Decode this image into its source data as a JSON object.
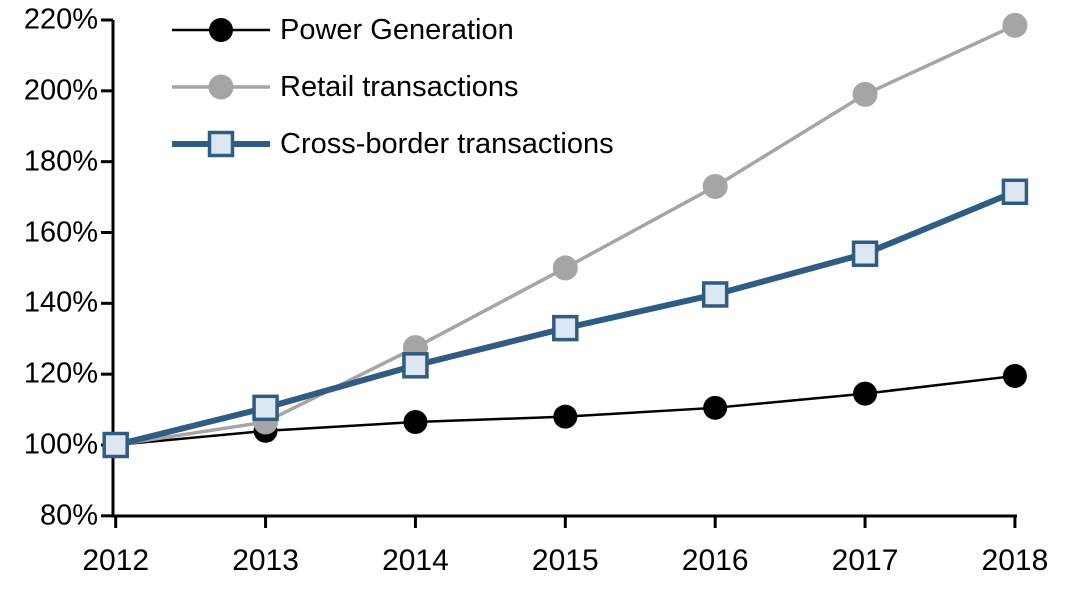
{
  "chart_data": {
    "type": "line",
    "title": "",
    "xlabel": "",
    "ylabel": "",
    "x": [
      "2012",
      "2013",
      "2014",
      "2015",
      "2016",
      "2017",
      "2018"
    ],
    "y_axis": {
      "min": 80,
      "max": 220,
      "step": 20,
      "suffix": "%",
      "tick_labels": [
        "80%",
        "100%",
        "120%",
        "140%",
        "160%",
        "180%",
        "200%",
        "220%"
      ]
    },
    "grid": "off",
    "legend_position": "top-left",
    "series": [
      {
        "name": "Power Generation",
        "marker": "circle",
        "color": "#000000",
        "marker_fill": "#000000",
        "line_width": 2.5,
        "marker_size": 12,
        "values": [
          100,
          104,
          106.5,
          108,
          110.5,
          114.5,
          119.5
        ]
      },
      {
        "name": "Retail transactions",
        "marker": "circle",
        "color": "#A5A5A5",
        "marker_fill": "#A5A5A5",
        "line_width": 3.5,
        "marker_size": 12.5,
        "values": [
          100,
          106.5,
          127.5,
          150,
          173,
          199,
          218.5
        ]
      },
      {
        "name": "Cross-border transactions",
        "marker": "square",
        "color": "#2E5C82",
        "marker_fill": "#DDE7F2",
        "line_width": 6,
        "marker_size": 11.5,
        "values": [
          100,
          110.5,
          122.5,
          133,
          142.5,
          154,
          171.5
        ]
      }
    ]
  }
}
